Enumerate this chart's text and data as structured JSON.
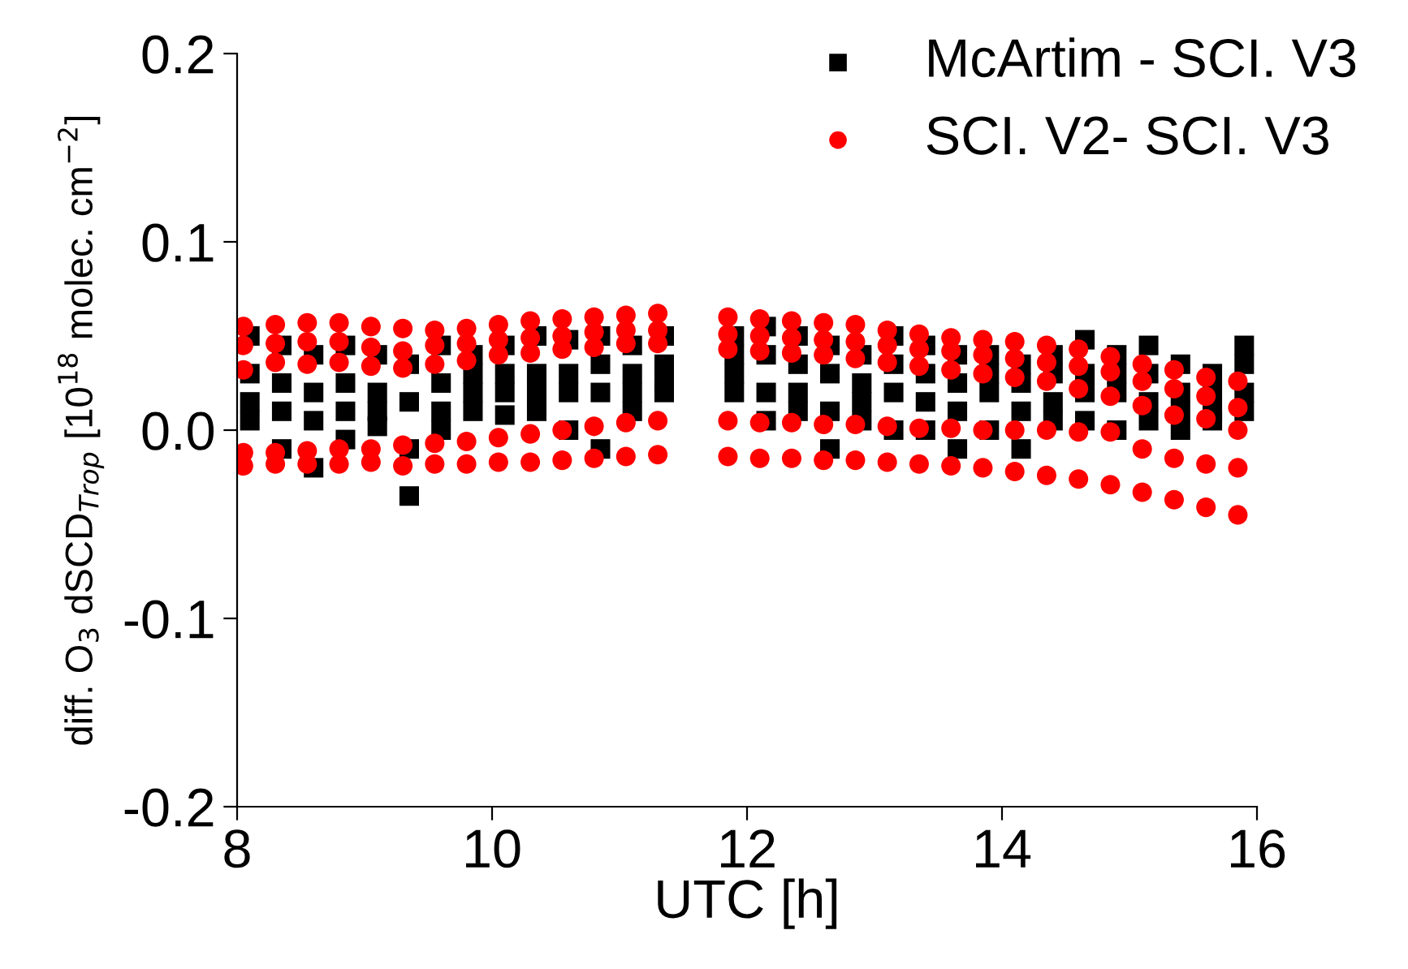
{
  "chart_data": {
    "type": "scatter",
    "xlabel": "UTC [h]",
    "ylabel": "diff. O$_{3}$ dSCD$_{Trop}$ [10$^{18}$ molec. cm$^{−2}$]",
    "xlim": [
      8,
      16
    ],
    "xticks": [
      8,
      10,
      12,
      14,
      16
    ],
    "ylim": [
      -0.2,
      0.2
    ],
    "yticks": [
      -0.2,
      -0.1,
      {
        "value": 0,
        "label": "0.0"
      },
      0.1,
      0.2
    ],
    "grid": false,
    "legend": "top right",
    "series": [
      {
        "name": "McArtim - SCI. V3",
        "color": "#000000",
        "marker": "square",
        "x": [
          8.1,
          8.1,
          8.1,
          8.1,
          8.35,
          8.35,
          8.35,
          8.35,
          8.6,
          8.6,
          8.6,
          8.6,
          8.85,
          8.85,
          8.85,
          8.85,
          9.1,
          9.1,
          9.1,
          9.1,
          9.35,
          9.35,
          9.35,
          9.35,
          9.6,
          9.6,
          9.6,
          9.6,
          9.85,
          9.85,
          9.85,
          9.85,
          10.1,
          10.1,
          10.1,
          10.1,
          10.35,
          10.35,
          10.35,
          10.35,
          10.6,
          10.6,
          10.6,
          10.6,
          10.85,
          10.85,
          10.85,
          10.85,
          11.1,
          11.1,
          11.1,
          11.1,
          11.35,
          11.35,
          11.35,
          11.35,
          11.9,
          11.9,
          11.9,
          11.9,
          12.15,
          12.15,
          12.15,
          12.15,
          12.4,
          12.4,
          12.4,
          12.4,
          12.65,
          12.65,
          12.65,
          12.65,
          12.9,
          12.9,
          12.9,
          12.9,
          13.15,
          13.15,
          13.15,
          13.15,
          13.4,
          13.4,
          13.4,
          13.4,
          13.65,
          13.65,
          13.65,
          13.65,
          13.9,
          13.9,
          13.9,
          13.9,
          14.15,
          14.15,
          14.15,
          14.15,
          14.4,
          14.4,
          14.4,
          14.4,
          14.65,
          14.65,
          14.65,
          14.65,
          14.9,
          14.9,
          14.9,
          14.9,
          15.15,
          15.15,
          15.15,
          15.15,
          15.4,
          15.4,
          15.4,
          15.4,
          15.65,
          15.65,
          15.65,
          15.65,
          15.9,
          15.9,
          15.9,
          15.9
        ],
        "values": [
          0.05,
          0.03,
          0.015,
          0.005,
          0.045,
          0.025,
          0.01,
          -0.01,
          0.04,
          0.02,
          0.005,
          -0.02,
          0.045,
          0.025,
          0.01,
          -0.005,
          0.04,
          0.02,
          0.01,
          0.002,
          0.035,
          0.015,
          -0.01,
          -0.035,
          0.045,
          0.025,
          0.01,
          0.0,
          0.04,
          0.03,
          0.02,
          0.01,
          0.045,
          0.03,
          0.02,
          0.008,
          0.05,
          0.03,
          0.02,
          0.01,
          0.048,
          0.03,
          0.02,
          0.0,
          0.05,
          0.035,
          0.02,
          -0.01,
          0.045,
          0.03,
          0.02,
          0.01,
          0.05,
          0.035,
          0.025,
          0.02,
          0.05,
          0.04,
          0.03,
          0.02,
          0.055,
          0.04,
          0.02,
          0.005,
          0.05,
          0.035,
          0.02,
          0.01,
          0.045,
          0.03,
          0.01,
          -0.01,
          0.04,
          0.025,
          0.015,
          0.005,
          0.05,
          0.035,
          0.02,
          0.0,
          0.045,
          0.03,
          0.015,
          0.0,
          0.04,
          0.025,
          0.01,
          -0.01,
          0.04,
          0.03,
          0.02,
          0.0,
          0.035,
          0.025,
          0.01,
          -0.01,
          0.04,
          0.03,
          0.015,
          0.005,
          0.048,
          0.03,
          0.02,
          0.005,
          0.04,
          0.03,
          0.02,
          0.0,
          0.045,
          0.03,
          0.015,
          0.005,
          0.035,
          0.02,
          0.01,
          0.0,
          0.03,
          0.02,
          0.01,
          0.005,
          0.045,
          0.035,
          0.02,
          0.01
        ]
      },
      {
        "name": "SCI. V2- SCI. V3",
        "color": "#ff0000",
        "marker": "circle",
        "x": [
          8.05,
          8.05,
          8.05,
          8.05,
          8.05,
          8.3,
          8.3,
          8.3,
          8.3,
          8.3,
          8.55,
          8.55,
          8.55,
          8.55,
          8.55,
          8.8,
          8.8,
          8.8,
          8.8,
          8.8,
          9.05,
          9.05,
          9.05,
          9.05,
          9.05,
          9.3,
          9.3,
          9.3,
          9.3,
          9.3,
          9.55,
          9.55,
          9.55,
          9.55,
          9.55,
          9.8,
          9.8,
          9.8,
          9.8,
          9.8,
          10.05,
          10.05,
          10.05,
          10.05,
          10.05,
          10.3,
          10.3,
          10.3,
          10.3,
          10.3,
          10.55,
          10.55,
          10.55,
          10.55,
          10.55,
          10.8,
          10.8,
          10.8,
          10.8,
          10.8,
          11.05,
          11.05,
          11.05,
          11.05,
          11.05,
          11.3,
          11.3,
          11.3,
          11.3,
          11.3,
          11.85,
          11.85,
          11.85,
          11.85,
          11.85,
          12.1,
          12.1,
          12.1,
          12.1,
          12.1,
          12.35,
          12.35,
          12.35,
          12.35,
          12.35,
          12.6,
          12.6,
          12.6,
          12.6,
          12.6,
          12.85,
          12.85,
          12.85,
          12.85,
          12.85,
          13.1,
          13.1,
          13.1,
          13.1,
          13.1,
          13.35,
          13.35,
          13.35,
          13.35,
          13.35,
          13.6,
          13.6,
          13.6,
          13.6,
          13.6,
          13.85,
          13.85,
          13.85,
          13.85,
          13.85,
          14.1,
          14.1,
          14.1,
          14.1,
          14.1,
          14.35,
          14.35,
          14.35,
          14.35,
          14.35,
          14.6,
          14.6,
          14.6,
          14.6,
          14.6,
          14.85,
          14.85,
          14.85,
          14.85,
          14.85,
          15.1,
          15.1,
          15.1,
          15.1,
          15.1,
          15.35,
          15.35,
          15.35,
          15.35,
          15.35,
          15.6,
          15.6,
          15.6,
          15.6,
          15.6,
          15.85,
          15.85,
          15.85,
          15.85,
          15.85
        ],
        "values": [
          0.055,
          0.045,
          0.032,
          -0.012,
          -0.019,
          0.056,
          0.046,
          0.036,
          -0.012,
          -0.018,
          0.057,
          0.047,
          0.035,
          -0.011,
          -0.018,
          0.057,
          0.047,
          0.036,
          -0.01,
          -0.018,
          0.055,
          0.044,
          0.034,
          -0.01,
          -0.017,
          0.054,
          0.042,
          0.033,
          -0.008,
          -0.019,
          0.053,
          0.045,
          0.035,
          -0.007,
          -0.018,
          0.054,
          0.046,
          0.037,
          -0.006,
          -0.018,
          0.056,
          0.048,
          0.04,
          -0.004,
          -0.017,
          0.058,
          0.049,
          0.041,
          -0.002,
          -0.017,
          0.059,
          0.05,
          0.043,
          0.0,
          -0.016,
          0.06,
          0.052,
          0.044,
          0.002,
          -0.015,
          0.061,
          0.053,
          0.046,
          0.004,
          -0.014,
          0.062,
          0.053,
          0.046,
          0.005,
          -0.013,
          0.06,
          0.051,
          0.043,
          0.005,
          -0.014,
          0.059,
          0.05,
          0.042,
          0.004,
          -0.015,
          0.058,
          0.049,
          0.041,
          0.004,
          -0.015,
          0.057,
          0.048,
          0.04,
          0.003,
          -0.016,
          0.056,
          0.047,
          0.038,
          0.003,
          -0.016,
          0.053,
          0.045,
          0.036,
          0.002,
          -0.017,
          0.051,
          0.043,
          0.034,
          0.001,
          -0.018,
          0.049,
          0.042,
          0.032,
          0.001,
          -0.019,
          0.048,
          0.04,
          0.03,
          0.0,
          -0.02,
          0.047,
          0.038,
          0.028,
          0.0,
          -0.022,
          0.045,
          0.036,
          0.026,
          0.0,
          -0.024,
          0.043,
          0.034,
          0.022,
          -0.001,
          -0.026,
          0.039,
          0.031,
          0.018,
          -0.001,
          -0.029,
          0.035,
          0.026,
          0.013,
          -0.01,
          -0.033,
          0.032,
          0.022,
          0.008,
          -0.015,
          -0.037,
          0.028,
          0.018,
          0.006,
          -0.018,
          -0.041,
          0.026,
          0.012,
          0.0,
          -0.02,
          -0.045
        ]
      }
    ]
  }
}
